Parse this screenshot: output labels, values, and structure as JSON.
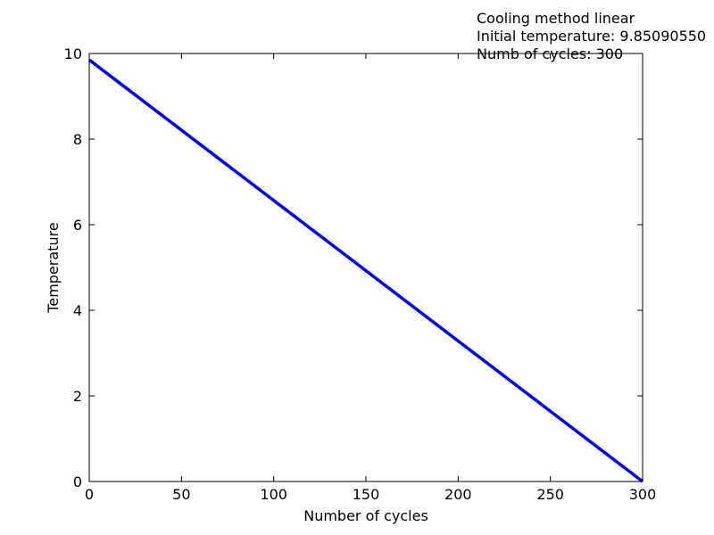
{
  "chart_data": {
    "type": "line",
    "title": "",
    "xlabel": "Number of cycles",
    "ylabel": "Temperature",
    "xlim": [
      0,
      300
    ],
    "ylim": [
      0,
      10
    ],
    "xticks": [
      "0",
      "50",
      "100",
      "150",
      "200",
      "250",
      "300"
    ],
    "yticks": [
      "0",
      "2",
      "4",
      "6",
      "8",
      "10"
    ],
    "grid": false,
    "annotations": [
      "Cooling method linear",
      "Initial temperature: 9.85090550",
      "Numb of cycles: 300"
    ],
    "series": [
      {
        "color": "#0000ff",
        "x": [
          0,
          300
        ],
        "y": [
          9.8509055,
          0
        ]
      }
    ]
  }
}
